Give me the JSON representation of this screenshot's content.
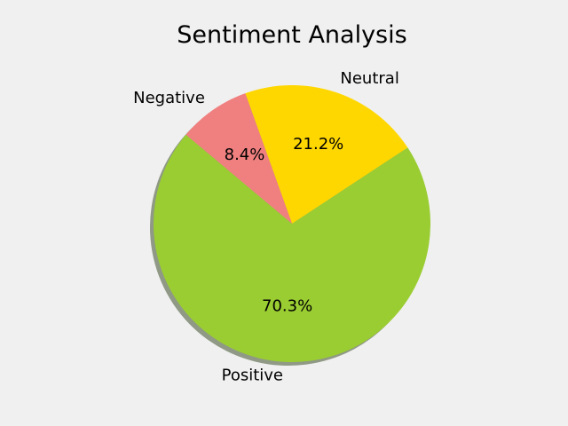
{
  "chart_data": {
    "type": "pie",
    "title": "Sentiment Analysis",
    "categories": [
      "Positive",
      "Neutral",
      "Negative"
    ],
    "values": [
      70.3,
      21.2,
      8.4
    ],
    "percent_labels": [
      "70.3%",
      "21.2%",
      "8.4%"
    ],
    "colors": [
      "#9acd32",
      "#ffd700",
      "#f08080"
    ],
    "shadow_color": "#8f9985",
    "start_angle_deg": 140,
    "direction": "counterclockwise",
    "shadow": true
  }
}
